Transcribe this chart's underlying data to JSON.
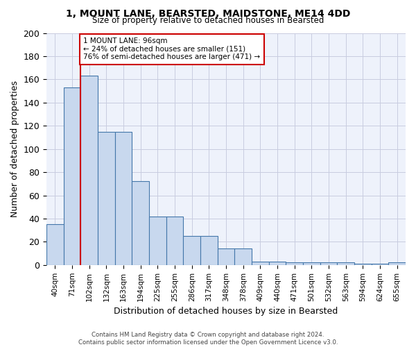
{
  "title": "1, MOUNT LANE, BEARSTED, MAIDSTONE, ME14 4DD",
  "subtitle": "Size of property relative to detached houses in Bearsted",
  "xlabel": "Distribution of detached houses by size in Bearsted",
  "ylabel": "Number of detached properties",
  "categories": [
    "40sqm",
    "71sqm",
    "102sqm",
    "132sqm",
    "163sqm",
    "194sqm",
    "225sqm",
    "255sqm",
    "286sqm",
    "317sqm",
    "348sqm",
    "378sqm",
    "409sqm",
    "440sqm",
    "471sqm",
    "501sqm",
    "532sqm",
    "563sqm",
    "594sqm",
    "624sqm",
    "655sqm"
  ],
  "values": [
    35,
    153,
    163,
    115,
    115,
    72,
    42,
    42,
    25,
    25,
    14,
    14,
    3,
    3,
    2,
    2,
    2,
    2,
    1,
    1,
    2
  ],
  "bar_color": "#c8d8ee",
  "bar_edge_color": "#4477aa",
  "red_line_index": 2,
  "annotation_text": "1 MOUNT LANE: 96sqm\n← 24% of detached houses are smaller (151)\n76% of semi-detached houses are larger (471) →",
  "annotation_box_color": "#ffffff",
  "annotation_box_edge": "#cc0000",
  "footnote": "Contains HM Land Registry data © Crown copyright and database right 2024.\nContains public sector information licensed under the Open Government Licence v3.0.",
  "ylim": [
    0,
    200
  ],
  "yticks": [
    0,
    20,
    40,
    60,
    80,
    100,
    120,
    140,
    160,
    180,
    200
  ],
  "background_color": "#eef2fb",
  "grid_color": "#c8cce0"
}
